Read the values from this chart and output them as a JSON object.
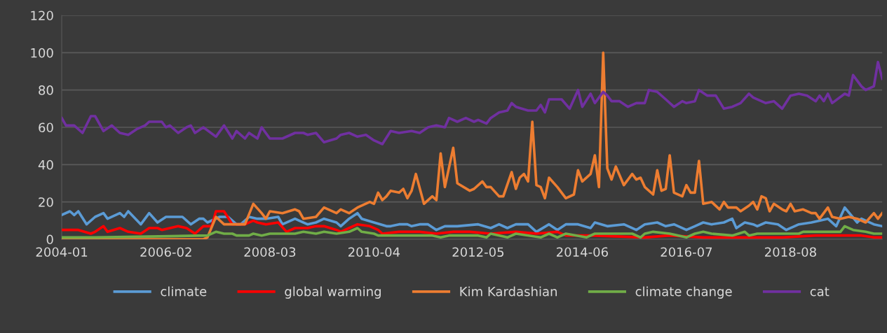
{
  "chart_data": {
    "type": "line",
    "ylim": [
      0,
      120
    ],
    "yticks": [
      0,
      20,
      40,
      60,
      80,
      100,
      120
    ],
    "xlim": [
      "2004-01",
      "2020-06"
    ],
    "xticks": [
      "2004-01",
      "2006-02",
      "2008-03",
      "2010-04",
      "2012-05",
      "2014-06",
      "2016-07",
      "2018-08"
    ],
    "grid": "y",
    "legend": "bottom",
    "line_style": "solid",
    "series": [
      {
        "name": "climate",
        "color": "#5b9bd5",
        "x": [
          "2004-01",
          "2004-03",
          "2004-04",
          "2004-05",
          "2004-07",
          "2004-09",
          "2004-11",
          "2004-12",
          "2005-03",
          "2005-04",
          "2005-05",
          "2005-08",
          "2005-10",
          "2005-12",
          "2006-02",
          "2006-05",
          "2006-06",
          "2006-08",
          "2006-10",
          "2006-11",
          "2006-12",
          "2007-03",
          "2007-05",
          "2007-07",
          "2007-08",
          "2007-10",
          "2007-12",
          "2008-02",
          "2008-05",
          "2008-06",
          "2008-09",
          "2008-10",
          "2008-12",
          "2009-02",
          "2009-04",
          "2009-07",
          "2009-08",
          "2009-10",
          "2009-12",
          "2010-01",
          "2010-04",
          "2010-07",
          "2010-08",
          "2010-10",
          "2010-12",
          "2011-01",
          "2011-03",
          "2011-05",
          "2011-07",
          "2011-09",
          "2011-12",
          "2012-05",
          "2012-08",
          "2012-10",
          "2012-12",
          "2013-02",
          "2013-05",
          "2013-07",
          "2013-10",
          "2013-12",
          "2014-02",
          "2014-05",
          "2014-08",
          "2014-09",
          "2014-12",
          "2015-04",
          "2015-07",
          "2015-09",
          "2015-12",
          "2016-02",
          "2016-04",
          "2016-07",
          "2016-09",
          "2016-11",
          "2017-01",
          "2017-04",
          "2017-06",
          "2017-07",
          "2017-09",
          "2017-11",
          "2017-12",
          "2018-02",
          "2018-05",
          "2018-07",
          "2018-10",
          "2019-01",
          "2019-05",
          "2019-07",
          "2019-09",
          "2019-12",
          "2020-01",
          "2020-04",
          "2020-06"
        ],
        "values": [
          13,
          15,
          13,
          15,
          8,
          12,
          14,
          11,
          14,
          12,
          15,
          8,
          14,
          9,
          12,
          12,
          12,
          8,
          11,
          11,
          9,
          12,
          12,
          8,
          8,
          12,
          11,
          11,
          12,
          8,
          11,
          10,
          8,
          9,
          11,
          9,
          7,
          11,
          14,
          11,
          9,
          7,
          7,
          8,
          8,
          7,
          8,
          8,
          5,
          7,
          7,
          8,
          6,
          8,
          6,
          8,
          8,
          4,
          8,
          5,
          8,
          8,
          6,
          9,
          7,
          8,
          5,
          8,
          9,
          7,
          8,
          5,
          7,
          9,
          8,
          9,
          11,
          6,
          9,
          8,
          7,
          9,
          8,
          5,
          8,
          9,
          11,
          7,
          17,
          9,
          11,
          8,
          7
        ]
      },
      {
        "name": "global warming",
        "color": "#ff0000",
        "x": [
          "2004-01",
          "2004-05",
          "2004-08",
          "2004-09",
          "2004-11",
          "2004-12",
          "2005-03",
          "2005-05",
          "2005-08",
          "2005-10",
          "2005-12",
          "2006-01",
          "2006-05",
          "2006-07",
          "2006-09",
          "2006-11",
          "2007-01",
          "2007-02",
          "2007-04",
          "2007-06",
          "2007-09",
          "2007-11",
          "2007-12",
          "2008-02",
          "2008-05",
          "2008-07",
          "2008-09",
          "2008-12",
          "2009-02",
          "2009-04",
          "2009-07",
          "2009-08",
          "2009-10",
          "2009-12",
          "2010-03",
          "2010-05",
          "2010-06",
          "2010-10",
          "2011-03",
          "2011-07",
          "2011-11",
          "2012-03",
          "2012-08",
          "2013-02",
          "2013-07",
          "2013-12",
          "2014-02",
          "2014-08",
          "2015-09",
          "2016-03",
          "2016-11",
          "2017-04",
          "2018-06",
          "2019-02",
          "2020-01",
          "2020-04",
          "2020-06"
        ],
        "values": [
          5,
          5,
          3,
          4,
          7,
          4,
          6,
          4,
          3,
          6,
          6,
          5,
          7,
          6,
          3,
          7,
          7,
          15,
          15,
          8,
          8,
          10,
          9,
          8,
          9,
          4,
          6,
          6,
          7,
          7,
          5,
          4,
          6,
          8,
          7,
          5,
          3,
          4,
          4,
          3,
          4,
          4,
          3,
          4,
          3,
          4,
          2,
          2,
          1,
          2,
          1,
          1,
          1,
          2,
          2,
          1,
          1
        ]
      },
      {
        "name": "Kim Kardashian",
        "color": "#ed7d31",
        "x": [
          "2004-01",
          "2006-11",
          "2006-12",
          "2007-02",
          "2007-04",
          "2007-09",
          "2007-11",
          "2008-01",
          "2008-02",
          "2008-03",
          "2008-06",
          "2008-09",
          "2008-10",
          "2008-11",
          "2009-02",
          "2009-04",
          "2009-07",
          "2009-08",
          "2009-10",
          "2009-12",
          "2010-03",
          "2010-04",
          "2010-05",
          "2010-06",
          "2010-07",
          "2010-08",
          "2010-10",
          "2010-11",
          "2010-12",
          "2011-01",
          "2011-02",
          "2011-04",
          "2011-06",
          "2011-07",
          "2011-08",
          "2011-09",
          "2011-11",
          "2011-12",
          "2012-03",
          "2012-04",
          "2012-06",
          "2012-07",
          "2012-08",
          "2012-10",
          "2012-11",
          "2013-01",
          "2013-02",
          "2013-03",
          "2013-04",
          "2013-05",
          "2013-06",
          "2013-07",
          "2013-08",
          "2013-09",
          "2013-10",
          "2013-12",
          "2014-02",
          "2014-04",
          "2014-05",
          "2014-06",
          "2014-08",
          "2014-09",
          "2014-10",
          "2014-11",
          "2014-12",
          "2015-01",
          "2015-02",
          "2015-04",
          "2015-06",
          "2015-07",
          "2015-08",
          "2015-09",
          "2015-11",
          "2015-12",
          "2016-01",
          "2016-02",
          "2016-03",
          "2016-04",
          "2016-06",
          "2016-07",
          "2016-08",
          "2016-09",
          "2016-10",
          "2016-11",
          "2017-01",
          "2017-03",
          "2017-04",
          "2017-05",
          "2017-07",
          "2017-08",
          "2017-10",
          "2017-11",
          "2017-12",
          "2018-01",
          "2018-02",
          "2018-03",
          "2018-04",
          "2018-06",
          "2018-07",
          "2018-08",
          "2018-09",
          "2018-11",
          "2019-01",
          "2019-02",
          "2019-03",
          "2019-05",
          "2019-06",
          "2019-08",
          "2019-10",
          "2019-12",
          "2020-02",
          "2020-04",
          "2020-05",
          "2020-06"
        ],
        "values": [
          0,
          0,
          1,
          12,
          8,
          8,
          19,
          14,
          11,
          15,
          14,
          16,
          15,
          11,
          12,
          17,
          14,
          16,
          14,
          17,
          20,
          19,
          25,
          21,
          23,
          26,
          25,
          27,
          22,
          26,
          35,
          19,
          23,
          21,
          46,
          28,
          49,
          30,
          26,
          27,
          31,
          28,
          28,
          23,
          23,
          36,
          27,
          33,
          35,
          31,
          63,
          29,
          28,
          22,
          33,
          28,
          22,
          24,
          37,
          31,
          35,
          45,
          28,
          100,
          38,
          32,
          39,
          29,
          35,
          32,
          33,
          28,
          24,
          37,
          26,
          27,
          45,
          25,
          23,
          29,
          25,
          25,
          42,
          19,
          20,
          16,
          20,
          17,
          17,
          15,
          18,
          20,
          16,
          23,
          22,
          15,
          19,
          16,
          15,
          19,
          15,
          16,
          14,
          14,
          11,
          17,
          12,
          11,
          12,
          11,
          9,
          14,
          11,
          14
        ]
      },
      {
        "name": "climate change",
        "color": "#70ad47",
        "x": [
          "2004-01",
          "2004-09",
          "2006-12",
          "2007-02",
          "2007-04",
          "2007-06",
          "2007-07",
          "2007-10",
          "2007-11",
          "2008-01",
          "2008-03",
          "2008-06",
          "2008-09",
          "2008-11",
          "2009-02",
          "2009-04",
          "2009-07",
          "2009-10",
          "2009-12",
          "2010-01",
          "2010-04",
          "2010-05",
          "2011-01",
          "2011-06",
          "2011-08",
          "2011-10",
          "2012-05",
          "2012-07",
          "2012-08",
          "2012-12",
          "2013-02",
          "2013-08",
          "2013-10",
          "2013-12",
          "2014-02",
          "2014-07",
          "2014-09",
          "2015-06",
          "2015-08",
          "2015-09",
          "2015-11",
          "2016-03",
          "2016-07",
          "2016-09",
          "2016-11",
          "2017-01",
          "2017-06",
          "2017-09",
          "2017-10",
          "2017-12",
          "2018-03",
          "2018-10",
          "2018-11",
          "2019-03",
          "2019-08",
          "2019-09",
          "2019-11",
          "2020-02",
          "2020-04",
          "2020-06"
        ],
        "values": [
          1,
          1,
          2,
          4,
          3,
          3,
          2,
          2,
          3,
          2,
          3,
          3,
          3,
          4,
          3,
          4,
          3,
          4,
          6,
          4,
          3,
          2,
          2,
          2,
          1,
          2,
          2,
          1,
          3,
          1,
          3,
          1,
          3,
          1,
          3,
          1,
          3,
          3,
          1,
          3,
          4,
          3,
          1,
          3,
          4,
          3,
          2,
          4,
          2,
          3,
          3,
          3,
          4,
          4,
          4,
          7,
          5,
          4,
          3,
          3
        ]
      },
      {
        "name": "cat",
        "color": "#7030a0",
        "x": [
          "2004-01",
          "2004-02",
          "2004-04",
          "2004-06",
          "2004-08",
          "2004-09",
          "2004-11",
          "2005-01",
          "2005-03",
          "2005-05",
          "2005-07",
          "2005-09",
          "2005-10",
          "2005-11",
          "2006-01",
          "2006-02",
          "2006-03",
          "2006-05",
          "2006-07",
          "2006-08",
          "2006-09",
          "2006-11",
          "2007-02",
          "2007-04",
          "2007-06",
          "2007-07",
          "2007-09",
          "2007-10",
          "2007-12",
          "2008-01",
          "2008-03",
          "2008-06",
          "2008-09",
          "2008-11",
          "2008-12",
          "2009-02",
          "2009-04",
          "2009-07",
          "2009-08",
          "2009-10",
          "2009-12",
          "2010-02",
          "2010-04",
          "2010-06",
          "2010-08",
          "2010-10",
          "2011-01",
          "2011-03",
          "2011-05",
          "2011-07",
          "2011-09",
          "2011-10",
          "2011-12",
          "2012-02",
          "2012-04",
          "2012-05",
          "2012-07",
          "2012-08",
          "2012-10",
          "2012-12",
          "2013-01",
          "2013-02",
          "2013-05",
          "2013-07",
          "2013-08",
          "2013-09",
          "2013-10",
          "2014-01",
          "2014-03",
          "2014-05",
          "2014-06",
          "2014-08",
          "2014-09",
          "2014-11",
          "2014-12",
          "2015-01",
          "2015-03",
          "2015-05",
          "2015-07",
          "2015-09",
          "2015-10",
          "2015-12",
          "2016-02",
          "2016-04",
          "2016-06",
          "2016-07",
          "2016-09",
          "2016-10",
          "2016-12",
          "2017-02",
          "2017-04",
          "2017-06",
          "2017-08",
          "2017-10",
          "2017-11",
          "2018-02",
          "2018-04",
          "2018-06",
          "2018-08",
          "2018-10",
          "2018-12",
          "2019-02",
          "2019-03",
          "2019-04",
          "2019-05",
          "2019-06",
          "2019-09",
          "2019-10",
          "2019-11",
          "2020-01",
          "2020-02",
          "2020-04",
          "2020-05",
          "2020-06"
        ],
        "values": [
          65,
          61,
          61,
          57,
          66,
          66,
          58,
          61,
          57,
          56,
          59,
          61,
          63,
          63,
          63,
          60,
          61,
          57,
          60,
          61,
          57,
          60,
          55,
          61,
          54,
          58,
          54,
          57,
          54,
          60,
          54,
          54,
          57,
          57,
          56,
          57,
          52,
          54,
          56,
          57,
          55,
          56,
          53,
          51,
          58,
          57,
          58,
          57,
          60,
          61,
          60,
          65,
          63,
          65,
          63,
          64,
          62,
          65,
          68,
          69,
          73,
          71,
          69,
          69,
          72,
          68,
          75,
          75,
          70,
          80,
          71,
          78,
          73,
          79,
          77,
          74,
          74,
          71,
          73,
          73,
          80,
          79,
          75,
          71,
          74,
          73,
          74,
          80,
          77,
          77,
          70,
          71,
          73,
          78,
          76,
          73,
          74,
          70,
          77,
          78,
          77,
          74,
          77,
          74,
          78,
          73,
          78,
          77,
          88,
          82,
          80,
          82,
          95,
          86
        ]
      }
    ]
  }
}
